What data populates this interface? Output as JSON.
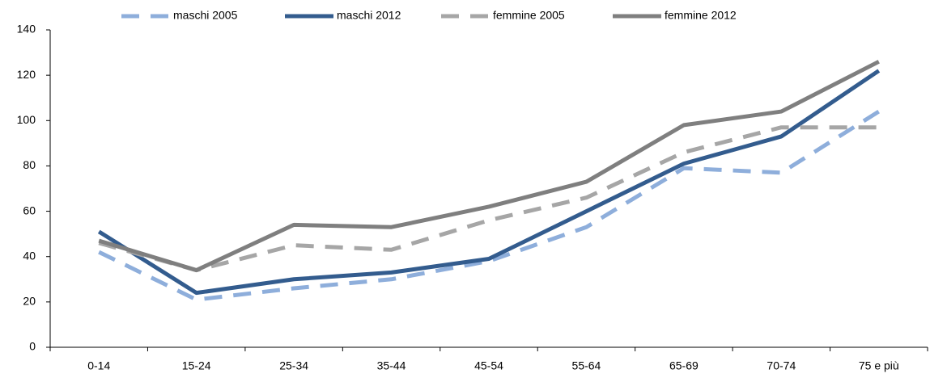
{
  "chart_data": {
    "type": "line",
    "categories": [
      "0-14",
      "15-24",
      "25-34",
      "35-44",
      "45-54",
      "55-64",
      "65-69",
      "70-74",
      "75 e più"
    ],
    "series": [
      {
        "name": "maschi 2005",
        "color": "#8eaedb",
        "dashed": true,
        "values": [
          42,
          21,
          26,
          30,
          38,
          53,
          79,
          77,
          104
        ]
      },
      {
        "name": "maschi 2012",
        "color": "#335c8e",
        "dashed": false,
        "values": [
          51,
          24,
          30,
          33,
          39,
          60,
          81,
          93,
          122
        ]
      },
      {
        "name": "femmine 2005",
        "color": "#a6a6a6",
        "dashed": true,
        "values": [
          46,
          34,
          45,
          43,
          56,
          66,
          86,
          97,
          97
        ]
      },
      {
        "name": "femmine 2012",
        "color": "#7f7f7f",
        "dashed": false,
        "values": [
          47,
          34,
          54,
          53,
          62,
          73,
          98,
          104,
          126
        ]
      }
    ],
    "ylim": [
      0,
      140
    ],
    "yticks": [
      0,
      20,
      40,
      60,
      80,
      100,
      120,
      140
    ],
    "grid": false
  }
}
